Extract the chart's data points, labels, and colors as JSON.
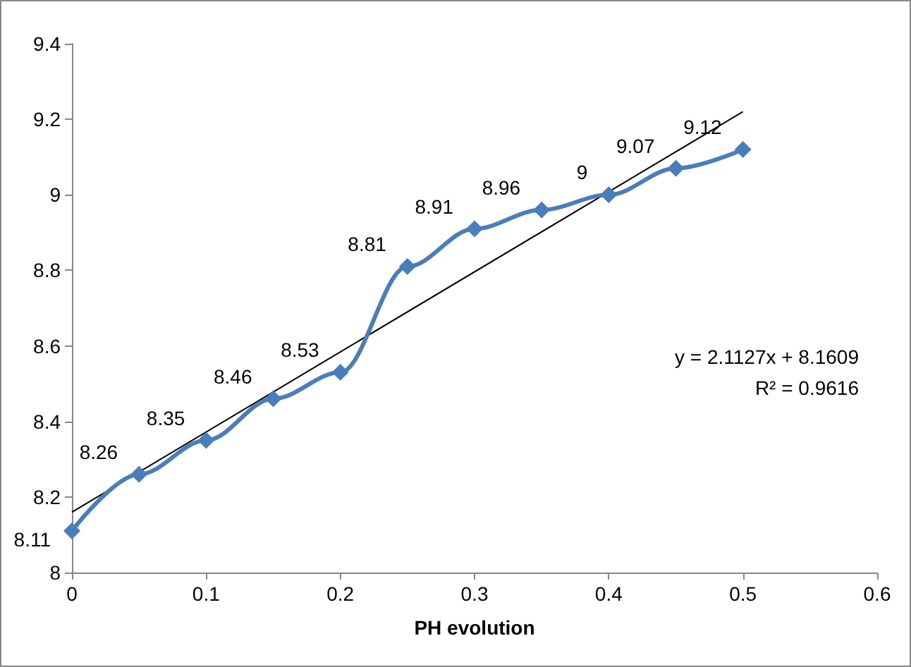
{
  "chart_data": {
    "type": "line",
    "xlabel": "PH evolution",
    "xlim": [
      0,
      0.6
    ],
    "xticks": [
      0,
      0.1,
      0.2,
      0.3,
      0.4,
      0.5,
      0.6
    ],
    "ylim": [
      8,
      9.4
    ],
    "yticks": [
      8,
      8.2,
      8.4,
      8.6,
      8.8,
      9,
      9.2,
      9.4
    ],
    "grid": false,
    "series": [
      {
        "color": "#4a7ebb",
        "marker": "diamond",
        "x": [
          0,
          0.05,
          0.1,
          0.15,
          0.2,
          0.25,
          0.3,
          0.35,
          0.4,
          0.45,
          0.5
        ],
        "values": [
          8.11,
          8.26,
          8.35,
          8.46,
          8.53,
          8.81,
          8.91,
          8.96,
          9,
          9.07,
          9.12
        ],
        "value_labels": [
          "8.11",
          "8.26",
          "8.35",
          "8.46",
          "8.53",
          "8.81",
          "8.91",
          "8.96",
          "9",
          "9.07",
          "9.12"
        ]
      },
      {
        "color": "#000000",
        "marker": "none",
        "x": [
          0,
          0.5
        ],
        "values": [
          8.16,
          9.22
        ]
      }
    ],
    "annotations": [
      "y = 2.1127x + 8.1609",
      "R² = 0.9616"
    ]
  }
}
